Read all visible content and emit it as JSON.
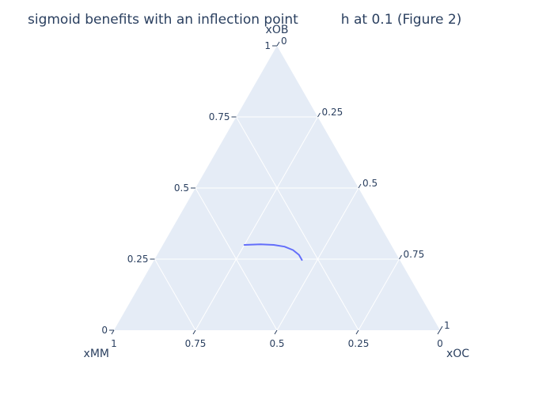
{
  "chart_data": {
    "type": "ternary",
    "title": "sigmoid benefits with an inflection point          h at 0.1 (Figure 2)",
    "axes": {
      "a": {
        "title": "xOB",
        "ticks": [
          0,
          0.25,
          0.5,
          0.75,
          1
        ],
        "tick_labels": [
          "0",
          "0.25",
          "0.5",
          "0.75",
          "1"
        ]
      },
      "b": {
        "title": "xMM",
        "ticks": [
          1,
          0.75,
          0.5,
          0.25,
          0
        ],
        "tick_labels": [
          "1",
          "0.75",
          "0.5",
          "0.25",
          "0"
        ]
      },
      "c": {
        "title": "xOC",
        "ticks": [
          0,
          0.25,
          0.5,
          0.75,
          1
        ],
        "tick_labels": [
          "0",
          "0.25",
          "0.5",
          "0.75",
          "1"
        ]
      }
    },
    "grid": true,
    "colors": {
      "background": "#e5ecf6",
      "grid": "#ffffff",
      "line": "#636efa",
      "text": "#2a3f5f"
    },
    "series": [
      {
        "mode": "lines",
        "points": [
          {
            "a": 0.3,
            "b": 0.45,
            "c": 0.25
          },
          {
            "a": 0.302,
            "b": 0.4,
            "c": 0.298
          },
          {
            "a": 0.3,
            "b": 0.36,
            "c": 0.34
          },
          {
            "a": 0.294,
            "b": 0.33,
            "c": 0.376
          },
          {
            "a": 0.282,
            "b": 0.31,
            "c": 0.408
          },
          {
            "a": 0.265,
            "b": 0.3,
            "c": 0.435
          },
          {
            "a": 0.247,
            "b": 0.3,
            "c": 0.453
          }
        ]
      }
    ]
  }
}
